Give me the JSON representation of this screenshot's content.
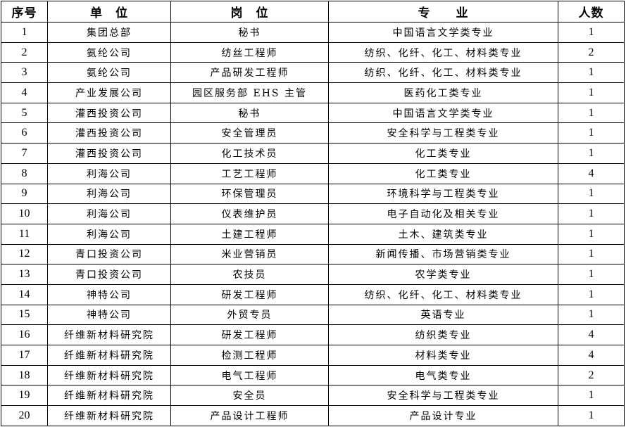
{
  "headers": {
    "index": "序号",
    "unit": "单　位",
    "position": "岗　位",
    "major": "专　　业",
    "count": "人数"
  },
  "rows": [
    {
      "index": "1",
      "unit": "集团总部",
      "position": "秘书",
      "major": "中国语言文学类专业",
      "count": "1"
    },
    {
      "index": "2",
      "unit": "氨纶公司",
      "position": "纺丝工程师",
      "major": "纺织、化纤、化工、材料类专业",
      "count": "2"
    },
    {
      "index": "3",
      "unit": "氨纶公司",
      "position": "产品研发工程师",
      "major": "纺织、化纤、化工、材料类专业",
      "count": "1"
    },
    {
      "index": "4",
      "unit": "产业发展公司",
      "position": "园区服务部 EHS 主管",
      "major": "医药化工类专业",
      "count": "1"
    },
    {
      "index": "5",
      "unit": "灌西投资公司",
      "position": "秘书",
      "major": "中国语言文学类专业",
      "count": "1"
    },
    {
      "index": "6",
      "unit": "灌西投资公司",
      "position": "安全管理员",
      "major": "安全科学与工程类专业",
      "count": "1"
    },
    {
      "index": "7",
      "unit": "灌西投资公司",
      "position": "化工技术员",
      "major": "化工类专业",
      "count": "1"
    },
    {
      "index": "8",
      "unit": "利海公司",
      "position": "工艺工程师",
      "major": "化工类专业",
      "count": "4"
    },
    {
      "index": "9",
      "unit": "利海公司",
      "position": "环保管理员",
      "major": "环境科学与工程类专业",
      "count": "1"
    },
    {
      "index": "10",
      "unit": "利海公司",
      "position": "仪表维护员",
      "major": "电子自动化及相关专业",
      "count": "1"
    },
    {
      "index": "11",
      "unit": "利海公司",
      "position": "土建工程师",
      "major": "土木、建筑类专业",
      "count": "1"
    },
    {
      "index": "12",
      "unit": "青口投资公司",
      "position": "米业营销员",
      "major": "新闻传播、市场营销类专业",
      "count": "1"
    },
    {
      "index": "13",
      "unit": "青口投资公司",
      "position": "农技员",
      "major": "农学类专业",
      "count": "1"
    },
    {
      "index": "14",
      "unit": "神特公司",
      "position": "研发工程师",
      "major": "纺织、化纤、化工、材料类专业",
      "count": "1"
    },
    {
      "index": "15",
      "unit": "神特公司",
      "position": "外贸专员",
      "major": "英语专业",
      "count": "1"
    },
    {
      "index": "16",
      "unit": "纤维新材料研究院",
      "position": "研发工程师",
      "major": "纺织类专业",
      "count": "4"
    },
    {
      "index": "17",
      "unit": "纤维新材料研究院",
      "position": "检测工程师",
      "major": "材料类专业",
      "count": "4"
    },
    {
      "index": "18",
      "unit": "纤维新材料研究院",
      "position": "电气工程师",
      "major": "电气类专业",
      "count": "2"
    },
    {
      "index": "19",
      "unit": "纤维新材料研究院",
      "position": "安全员",
      "major": "安全科学与工程类专业",
      "count": "1"
    },
    {
      "index": "20",
      "unit": "纤维新材料研究院",
      "position": "产品设计工程师",
      "major": "产品设计专业",
      "count": "1"
    }
  ]
}
